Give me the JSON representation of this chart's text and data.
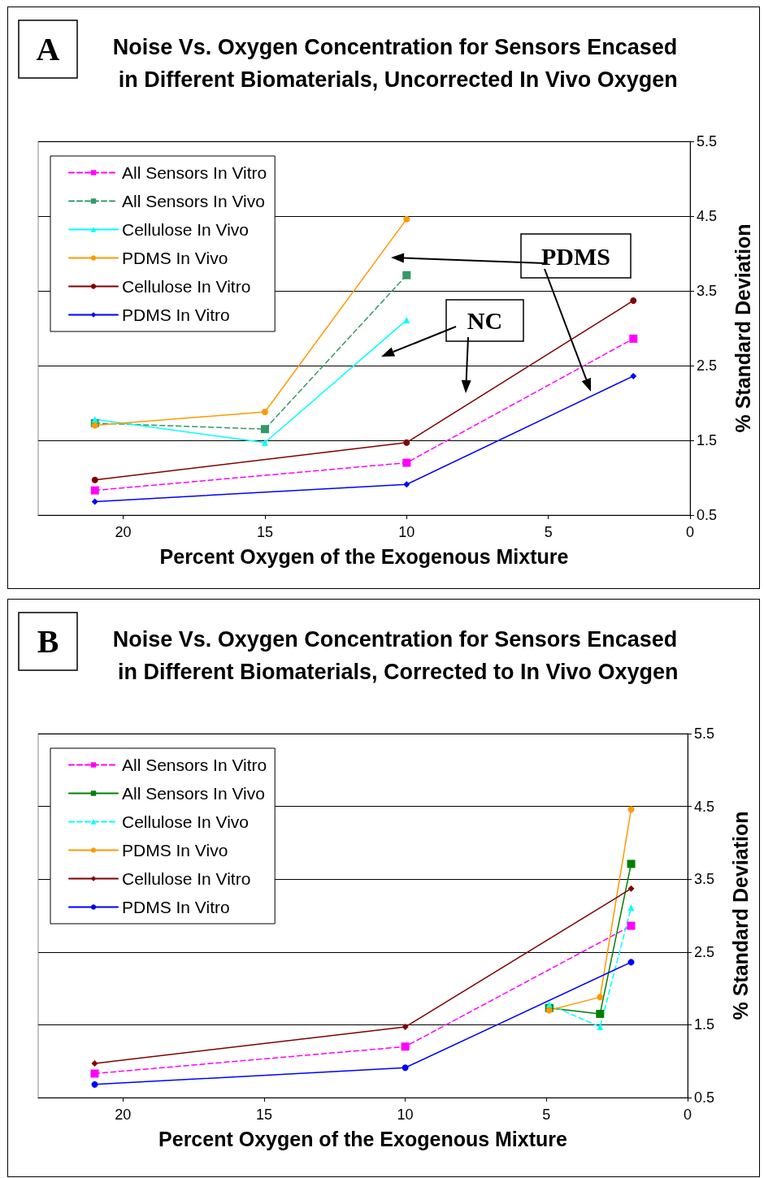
{
  "chart_data": [
    {
      "type": "line",
      "title": "Noise Vs. Oxygen Concentration for Sensors Encased in Different Biomaterials, Uncorrected In Vivo Oxygen",
      "xlabel": "Percent Oxygen of the Exogenous Mixture",
      "ylabel": "% Standard Deviation",
      "xlim": [
        23,
        0
      ],
      "xticks": [
        0,
        5,
        10,
        15,
        20
      ],
      "ylim": [
        0.5,
        5.5
      ],
      "yticks": [
        0.5,
        1.5,
        2.5,
        3.5,
        4.5,
        5.5
      ],
      "grid": "y",
      "legend": "top left",
      "annotations": [
        "A",
        "PDMS",
        "NC"
      ],
      "series": [
        {
          "name": "All Sensors In Vitro",
          "color": "#ff00ff",
          "marker": "square",
          "line_style": "dashed",
          "x": [
            21,
            10,
            2
          ],
          "values": [
            0.83,
            1.2,
            2.86
          ]
        },
        {
          "name": "All Sensors In Vivo",
          "color": "#339966",
          "marker": "square",
          "line_style": "dashed",
          "x": [
            21,
            15,
            10
          ],
          "values": [
            1.73,
            1.65,
            3.71
          ]
        },
        {
          "name": "Cellulose In Vivo",
          "color": "#00ffff",
          "marker": "triangle",
          "line_style": "solid",
          "x": [
            21,
            15,
            10
          ],
          "values": [
            1.78,
            1.47,
            3.11
          ]
        },
        {
          "name": "PDMS In Vivo",
          "color": "#ff9900",
          "marker": "circle",
          "line_style": "solid",
          "x": [
            21,
            15,
            10
          ],
          "values": [
            1.7,
            1.88,
            4.46
          ]
        },
        {
          "name": "Cellulose In Vitro",
          "color": "#800000",
          "marker": "circle",
          "line_style": "solid",
          "x": [
            21,
            10,
            2
          ],
          "values": [
            0.97,
            1.47,
            3.37
          ]
        },
        {
          "name": "PDMS In Vitro",
          "color": "#0000ff",
          "marker": "diamond",
          "line_style": "solid",
          "x": [
            21,
            10,
            2
          ],
          "values": [
            0.68,
            0.91,
            2.36
          ]
        }
      ]
    },
    {
      "type": "line",
      "title": "Noise Vs. Oxygen Concentration for Sensors Encased in Different Biomaterials, Corrected to In Vivo Oxygen",
      "xlabel": "Percent Oxygen of the Exogenous Mixture",
      "ylabel": "% Standard Deviation",
      "xlim": [
        23,
        0
      ],
      "xticks": [
        0,
        5,
        10,
        15,
        20
      ],
      "ylim": [
        0.5,
        5.5
      ],
      "yticks": [
        0.5,
        1.5,
        2.5,
        3.5,
        4.5,
        5.5
      ],
      "grid": "y",
      "legend": "top left",
      "annotations": [
        "B"
      ],
      "series": [
        {
          "name": "All Sensors In Vitro",
          "color": "#ff00ff",
          "marker": "square",
          "line_style": "dashed",
          "x": [
            21,
            10,
            2
          ],
          "values": [
            0.83,
            1.2,
            2.86
          ]
        },
        {
          "name": "All Sensors In Vivo",
          "color": "#008000",
          "marker": "square",
          "line_style": "solid",
          "x": [
            4.9,
            3.1,
            2
          ],
          "values": [
            1.73,
            1.65,
            3.71
          ]
        },
        {
          "name": "Cellulose In Vivo",
          "color": "#00ffff",
          "marker": "triangle",
          "line_style": "dashed",
          "x": [
            4.9,
            3.1,
            2
          ],
          "values": [
            1.78,
            1.47,
            3.11
          ]
        },
        {
          "name": "PDMS In Vivo",
          "color": "#ff9900",
          "marker": "circle",
          "line_style": "solid",
          "x": [
            4.9,
            3.1,
            2
          ],
          "values": [
            1.7,
            1.88,
            4.46
          ]
        },
        {
          "name": "Cellulose In Vitro",
          "color": "#800000",
          "marker": "diamond",
          "line_style": "solid",
          "x": [
            21,
            10,
            2
          ],
          "values": [
            0.97,
            1.47,
            3.37
          ]
        },
        {
          "name": "PDMS In Vitro",
          "color": "#0000ff",
          "marker": "circle",
          "line_style": "solid",
          "x": [
            21,
            10,
            2
          ],
          "values": [
            0.68,
            0.91,
            2.36
          ]
        }
      ]
    }
  ]
}
